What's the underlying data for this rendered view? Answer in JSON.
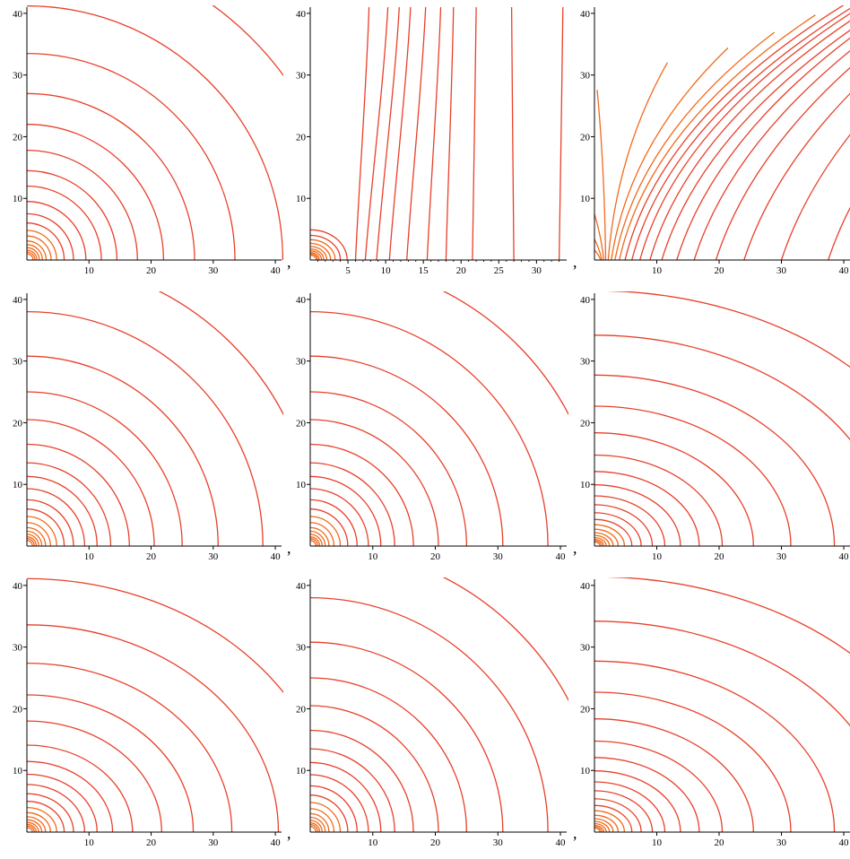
{
  "separator": ",",
  "colors": {
    "contour": "#e8402a",
    "axis": "#000000"
  },
  "chart_data": [
    {
      "type": "contour",
      "row": 0,
      "col": 0,
      "title": "",
      "xlabel": "",
      "ylabel": "",
      "xlim": [
        0,
        41
      ],
      "ylim": [
        0,
        41
      ],
      "xticks": [
        10,
        20,
        30,
        40
      ],
      "yticks": [
        10,
        20,
        30,
        40
      ],
      "minor_x_ticks": false,
      "family": "ellipse",
      "aspect": 1.0,
      "x_intercepts": [
        1.0,
        1.3,
        1.6,
        2.0,
        2.5,
        3.1,
        3.9,
        4.8,
        6.0,
        7.5,
        9.5,
        12.0,
        14.5,
        17.8,
        22.0,
        27.0,
        33.5,
        41.2,
        51.0
      ]
    },
    {
      "type": "contour",
      "row": 0,
      "col": 1,
      "title": "",
      "xlabel": "",
      "ylabel": "",
      "xlim": [
        0,
        34
      ],
      "ylim": [
        0,
        41
      ],
      "xticks": [
        5,
        10,
        15,
        20,
        25,
        30
      ],
      "yticks": [
        10,
        20,
        30,
        40
      ],
      "minor_x_ticks": true,
      "family": "dipole",
      "x_intercepts": [
        0.8,
        1.0,
        1.2,
        1.5,
        1.8,
        2.2,
        2.7,
        3.3,
        4.0,
        4.9,
        6.0,
        7.3,
        8.8,
        10.5,
        12.8,
        15.5,
        18.0,
        21.5,
        27.0,
        33.0
      ],
      "tops": [
        null,
        null,
        null,
        null,
        null,
        null,
        null,
        null,
        null,
        null,
        7.8,
        10.3,
        11.8,
        13.3,
        15.3,
        17.3,
        19.0,
        22.0,
        26.7,
        33.5
      ]
    },
    {
      "type": "contour",
      "row": 0,
      "col": 2,
      "title": "",
      "xlabel": "",
      "ylabel": "",
      "xlim": [
        0,
        41
      ],
      "ylim": [
        0,
        41
      ],
      "xticks": [
        10,
        20,
        30,
        40
      ],
      "yticks": [
        10,
        20,
        30,
        40
      ],
      "minor_x_ticks": false,
      "family": "lines",
      "x_intercepts": [
        1.0,
        1.2,
        1.5,
        1.8,
        2.2,
        2.7,
        3.3,
        4.0,
        4.9,
        6.0,
        7.3,
        8.9,
        10.8,
        13.2,
        16.0,
        19.5,
        24.0,
        30.0,
        37.5
      ],
      "slopes": [
        -1.4,
        -0.8,
        -0.4,
        -0.05,
        0.3,
        0.55,
        0.7,
        0.8,
        0.88,
        0.95,
        1.0,
        1.05,
        1.1,
        1.12,
        1.15,
        1.17,
        1.19,
        1.2,
        1.22
      ]
    },
    {
      "type": "contour",
      "row": 1,
      "col": 0,
      "title": "",
      "xlabel": "",
      "ylabel": "",
      "xlim": [
        0,
        41
      ],
      "ylim": [
        0,
        41
      ],
      "xticks": [
        10,
        20,
        30,
        40
      ],
      "yticks": [
        10,
        20,
        30,
        40
      ],
      "minor_x_ticks": false,
      "family": "ellipse",
      "aspect": 1.0,
      "x_intercepts": [
        0.9,
        1.2,
        1.5,
        1.9,
        2.4,
        3.0,
        3.8,
        4.8,
        6.0,
        7.5,
        9.3,
        11.3,
        13.5,
        16.5,
        20.5,
        25.0,
        30.8,
        38.0,
        46.5
      ]
    },
    {
      "type": "contour",
      "row": 1,
      "col": 1,
      "title": "",
      "xlabel": "",
      "ylabel": "",
      "xlim": [
        0,
        41
      ],
      "ylim": [
        0,
        41
      ],
      "xticks": [
        10,
        20,
        30,
        40
      ],
      "yticks": [
        10,
        20,
        30,
        40
      ],
      "minor_x_ticks": false,
      "family": "ellipse",
      "aspect": 1.0,
      "x_intercepts": [
        0.9,
        1.2,
        1.5,
        1.9,
        2.4,
        3.0,
        3.8,
        4.8,
        6.0,
        7.5,
        9.3,
        11.3,
        13.5,
        16.5,
        20.5,
        25.0,
        30.8,
        38.0,
        46.5
      ]
    },
    {
      "type": "contour",
      "row": 1,
      "col": 2,
      "title": "",
      "xlabel": "",
      "ylabel": "",
      "xlim": [
        0,
        41
      ],
      "ylim": [
        0,
        41
      ],
      "xticks": [
        10,
        20,
        30,
        40
      ],
      "yticks": [
        10,
        20,
        30,
        40
      ],
      "minor_x_ticks": false,
      "family": "ellipse",
      "aspect": 0.72,
      "x_intercepts": [
        0.9,
        1.2,
        1.5,
        1.9,
        2.4,
        3.0,
        3.8,
        4.8,
        6.0,
        7.5,
        9.3,
        11.3,
        13.8,
        16.8,
        20.5,
        25.5,
        31.5,
        38.5,
        47.5,
        57.5
      ]
    },
    {
      "type": "contour",
      "row": 2,
      "col": 0,
      "title": "",
      "xlabel": "",
      "ylabel": "",
      "xlim": [
        0,
        41
      ],
      "ylim": [
        0,
        41
      ],
      "xticks": [
        10,
        20,
        30,
        40
      ],
      "yticks": [
        10,
        20,
        30,
        40
      ],
      "minor_x_ticks": false,
      "family": "ellipse",
      "aspect": 0.83,
      "x_intercepts": [
        0.9,
        1.2,
        1.5,
        1.9,
        2.4,
        3.0,
        3.8,
        4.8,
        6.0,
        7.5,
        9.3,
        11.3,
        13.8,
        17.0,
        21.7,
        26.8,
        33.0,
        40.5,
        49.5
      ]
    },
    {
      "type": "contour",
      "row": 2,
      "col": 1,
      "title": "",
      "xlabel": "",
      "ylabel": "",
      "xlim": [
        0,
        41
      ],
      "ylim": [
        0,
        41
      ],
      "xticks": [
        10,
        20,
        30,
        40
      ],
      "yticks": [
        10,
        20,
        30,
        40
      ],
      "minor_x_ticks": false,
      "family": "ellipse",
      "aspect": 1.0,
      "x_intercepts": [
        0.9,
        1.2,
        1.5,
        1.9,
        2.4,
        3.0,
        3.8,
        4.8,
        6.0,
        7.5,
        9.3,
        11.3,
        13.5,
        16.5,
        20.5,
        25.0,
        30.8,
        38.0,
        46.5
      ]
    },
    {
      "type": "contour",
      "row": 2,
      "col": 2,
      "title": "",
      "xlabel": "",
      "ylabel": "",
      "xlim": [
        0,
        41
      ],
      "ylim": [
        0,
        41
      ],
      "xticks": [
        10,
        20,
        30,
        40
      ],
      "yticks": [
        10,
        20,
        30,
        40
      ],
      "minor_x_ticks": false,
      "family": "ellipse",
      "aspect": 0.72,
      "x_intercepts": [
        0.9,
        1.2,
        1.5,
        1.9,
        2.4,
        3.0,
        3.8,
        4.8,
        6.0,
        7.5,
        9.3,
        11.3,
        13.8,
        16.8,
        20.5,
        25.5,
        31.5,
        38.5,
        47.5,
        57.5
      ]
    }
  ]
}
